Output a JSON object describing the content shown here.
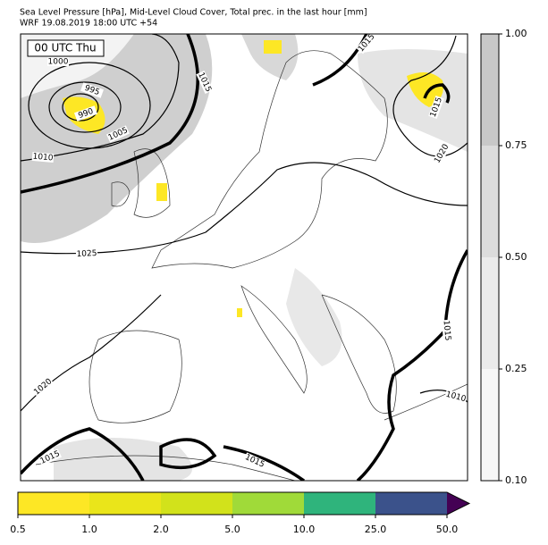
{
  "header": {
    "title": "Sea Level Pressure [hPa], Mid-Level Cloud Cover, Total prec. in the last hour [mm]",
    "subtitle": "WRF 19.08.2019 18:00 UTC +54"
  },
  "map": {
    "time_label": "00 UTC Thu",
    "isobar_labels": [
      1000,
      995,
      990,
      1005,
      1010,
      1025,
      1015,
      1015,
      1015,
      1020,
      1015,
      1010,
      1020,
      1015,
      1015
    ]
  },
  "cloud_colorbar": {
    "ticks": [
      {
        "value": 0.1,
        "label": "0.10"
      },
      {
        "value": 0.25,
        "label": "0.25"
      },
      {
        "value": 0.5,
        "label": "0.50"
      },
      {
        "value": 0.75,
        "label": "0.75"
      },
      {
        "value": 1.0,
        "label": "1.00"
      }
    ],
    "colors": [
      "#f7f7f7",
      "#ebebeb",
      "#dcdcdc",
      "#c8c8c8"
    ]
  },
  "precip_colorbar": {
    "ticks": [
      0.5,
      {
        "value": 1.0,
        "label": "1.0"
      },
      {
        "value": 2.0,
        "label": "2.0"
      },
      {
        "value": 5.0,
        "label": "5.0"
      },
      {
        "value": 10.0,
        "label": "10.0"
      },
      {
        "value": 25.0,
        "label": "25.0"
      },
      {
        "value": 50.0,
        "label": "50.0"
      }
    ],
    "colors": [
      "#fde725",
      "#eae51a",
      "#d2e21b",
      "#a0da39",
      "#2fb47c",
      "#3b528b",
      "#440154"
    ]
  }
}
